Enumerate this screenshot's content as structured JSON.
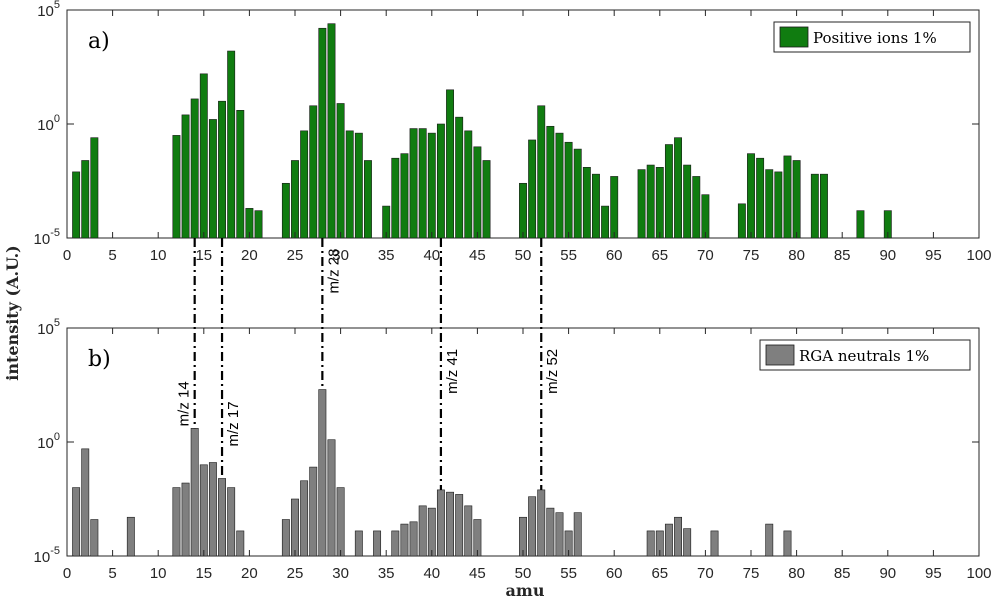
{
  "chart_data": [
    {
      "type": "bar",
      "panel_label": "a)",
      "scale": "log",
      "ylim_exponents": [
        -5,
        5
      ],
      "xlim": [
        0,
        100
      ],
      "legend": {
        "label": "Positive ions 1%",
        "placement": "top-right"
      },
      "color": "#107c10",
      "bars": [
        [
          1,
          -2.1
        ],
        [
          2,
          -1.6
        ],
        [
          3,
          -0.6
        ],
        [
          12,
          -0.5
        ],
        [
          13,
          0.4
        ],
        [
          14,
          1.1
        ],
        [
          15,
          2.2
        ],
        [
          16,
          0.2
        ],
        [
          17,
          1.0
        ],
        [
          18,
          3.2
        ],
        [
          19,
          0.6
        ],
        [
          20,
          -3.7
        ],
        [
          21,
          -3.8
        ],
        [
          24,
          -2.6
        ],
        [
          25,
          -1.6
        ],
        [
          26,
          -0.3
        ],
        [
          27,
          0.8
        ],
        [
          28,
          4.2
        ],
        [
          29,
          4.4
        ],
        [
          30,
          0.9
        ],
        [
          31,
          -0.3
        ],
        [
          32,
          -0.4
        ],
        [
          33,
          -1.6
        ],
        [
          35,
          -3.6
        ],
        [
          36,
          -1.5
        ],
        [
          37,
          -1.3
        ],
        [
          38,
          -0.2
        ],
        [
          39,
          -0.2
        ],
        [
          40,
          -0.4
        ],
        [
          41,
          0.0
        ],
        [
          42,
          1.5
        ],
        [
          43,
          0.3
        ],
        [
          44,
          -0.3
        ],
        [
          45,
          -1.0
        ],
        [
          46,
          -1.6
        ],
        [
          50,
          -2.6
        ],
        [
          51,
          -0.7
        ],
        [
          52,
          0.8
        ],
        [
          53,
          -0.1
        ],
        [
          54,
          -0.4
        ],
        [
          55,
          -0.8
        ],
        [
          56,
          -1.1
        ],
        [
          57,
          -1.9
        ],
        [
          58,
          -2.2
        ],
        [
          59,
          -3.6
        ],
        [
          60,
          -2.3
        ],
        [
          63,
          -2.0
        ],
        [
          64,
          -1.8
        ],
        [
          65,
          -1.9
        ],
        [
          66,
          -0.9
        ],
        [
          67,
          -0.6
        ],
        [
          68,
          -1.8
        ],
        [
          69,
          -2.3
        ],
        [
          70,
          -3.1
        ],
        [
          74,
          -3.5
        ],
        [
          75,
          -1.3
        ],
        [
          76,
          -1.5
        ],
        [
          77,
          -2.0
        ],
        [
          78,
          -2.1
        ],
        [
          79,
          -1.4
        ],
        [
          80,
          -1.6
        ],
        [
          82,
          -2.2
        ],
        [
          83,
          -2.2
        ],
        [
          87,
          -3.8
        ],
        [
          90,
          -3.8
        ]
      ]
    },
    {
      "type": "bar",
      "panel_label": "b)",
      "scale": "log",
      "ylim_exponents": [
        -5,
        5
      ],
      "xlim": [
        0,
        100
      ],
      "legend": {
        "label": "RGA neutrals 1%",
        "placement": "top-right"
      },
      "color": "#7f7f7f",
      "bars": [
        [
          1,
          -2.0
        ],
        [
          2,
          -0.3
        ],
        [
          3,
          -3.4
        ],
        [
          7,
          -3.3
        ],
        [
          12,
          -2.0
        ],
        [
          13,
          -1.8
        ],
        [
          14,
          0.6
        ],
        [
          15,
          -1.0
        ],
        [
          16,
          -0.9
        ],
        [
          17,
          -1.6
        ],
        [
          18,
          -2.0
        ],
        [
          19,
          -3.9
        ],
        [
          24,
          -3.4
        ],
        [
          25,
          -2.5
        ],
        [
          26,
          -1.7
        ],
        [
          27,
          -1.1
        ],
        [
          28,
          2.3
        ],
        [
          29,
          0.1
        ],
        [
          30,
          -2.0
        ],
        [
          32,
          -3.9
        ],
        [
          34,
          -3.9
        ],
        [
          36,
          -3.9
        ],
        [
          37,
          -3.6
        ],
        [
          38,
          -3.5
        ],
        [
          39,
          -2.8
        ],
        [
          40,
          -2.9
        ],
        [
          41,
          -2.1
        ],
        [
          42,
          -2.2
        ],
        [
          43,
          -2.3
        ],
        [
          44,
          -2.8
        ],
        [
          45,
          -3.4
        ],
        [
          50,
          -3.3
        ],
        [
          51,
          -2.4
        ],
        [
          52,
          -2.1
        ],
        [
          53,
          -2.9
        ],
        [
          54,
          -3.1
        ],
        [
          55,
          -3.9
        ],
        [
          56,
          -3.1
        ],
        [
          64,
          -3.9
        ],
        [
          65,
          -3.9
        ],
        [
          66,
          -3.6
        ],
        [
          67,
          -3.3
        ],
        [
          68,
          -3.8
        ],
        [
          71,
          -3.9
        ],
        [
          77,
          -3.6
        ],
        [
          79,
          -3.9
        ]
      ]
    }
  ],
  "axes": {
    "xlabel": "amu",
    "ylabel": "intensity (A.U.)",
    "x_ticks": [
      0,
      5,
      10,
      15,
      20,
      25,
      30,
      35,
      40,
      45,
      50,
      55,
      60,
      65,
      70,
      75,
      80,
      85,
      90,
      95,
      100
    ],
    "y_tick_labels": [
      {
        "base": "10",
        "exp": "5",
        "value_exp": 5
      },
      {
        "base": "10",
        "exp": "0",
        "value_exp": 0
      },
      {
        "base": "10",
        "exp": "-5",
        "value_exp": -5
      }
    ]
  },
  "annotations": [
    {
      "label": "m/z 14",
      "x": 14,
      "bottom_panel_top_exp": 0.6
    },
    {
      "label": "m/z 17",
      "x": 17,
      "bottom_panel_top_exp": -1.6
    },
    {
      "label": "m/z 28",
      "x": 28,
      "bottom_panel_top_exp": 2.3
    },
    {
      "label": "m/z 41",
      "x": 41,
      "bottom_panel_top_exp": -2.1
    },
    {
      "label": "m/z 52",
      "x": 52,
      "bottom_panel_top_exp": -2.1
    }
  ]
}
